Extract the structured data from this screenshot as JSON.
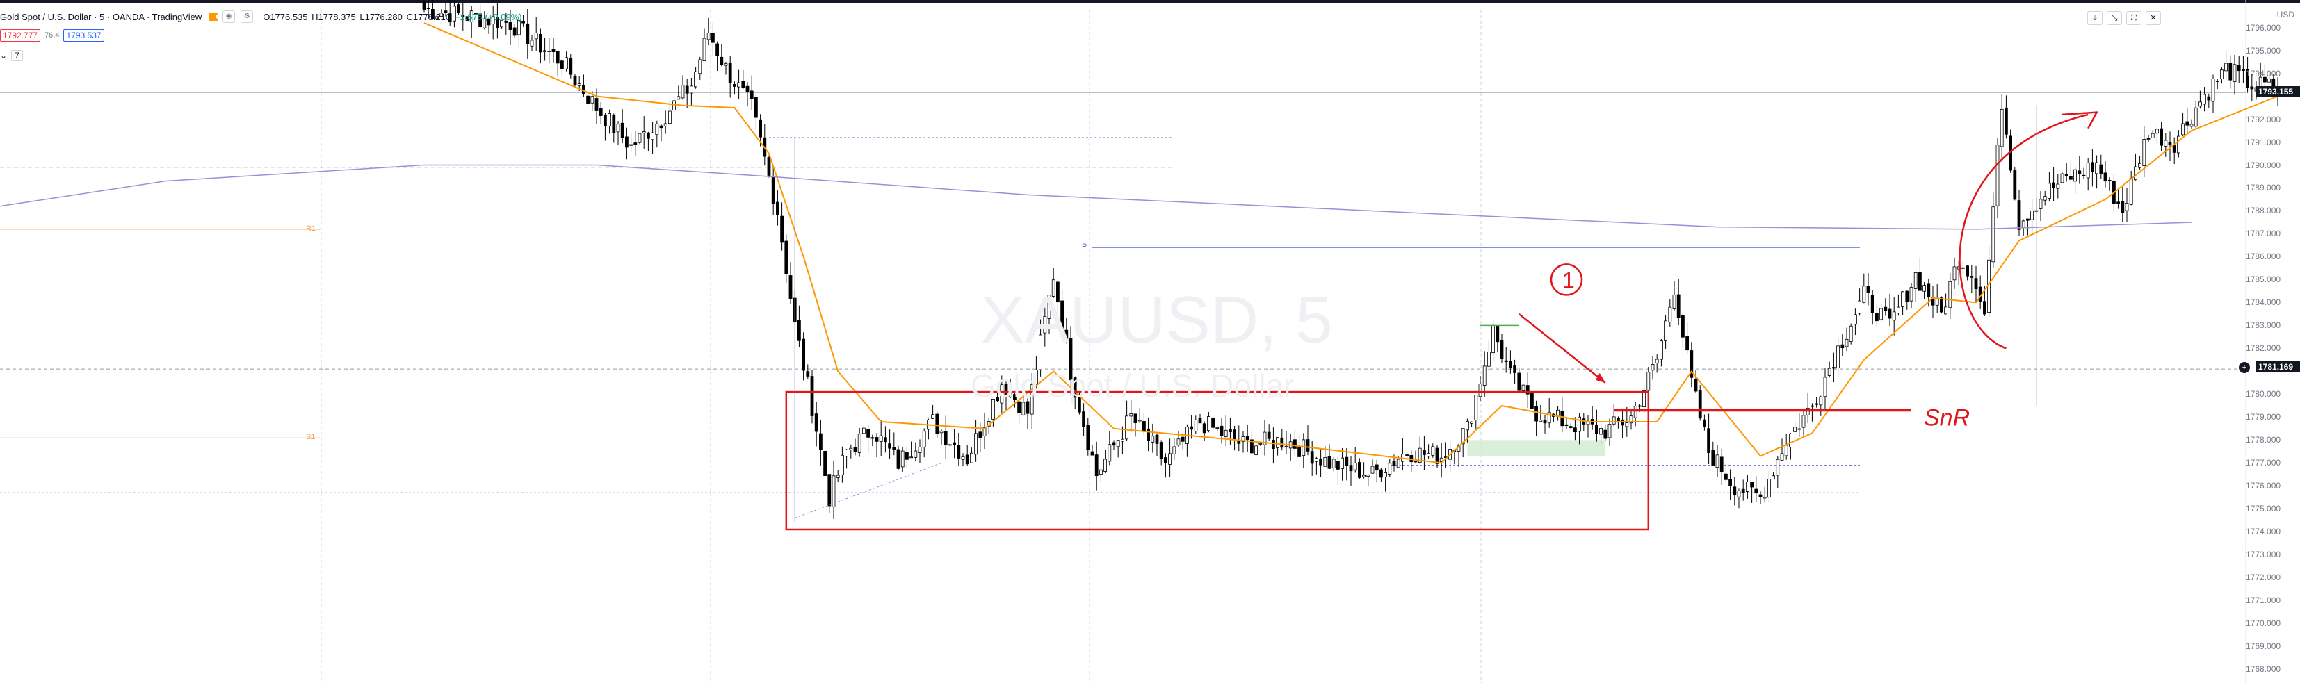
{
  "header": {
    "symbol_title": "Gold Spot / U.S. Dollar · 5 · OANDA · TradingView",
    "ohlc": {
      "open": "O1776.535",
      "high": "H1778.375",
      "low": "L1776.280",
      "close": "C1778.210",
      "change": "+1.675 (+0.09%)"
    }
  },
  "quote": {
    "sell": "1792.777",
    "spread": "76.4",
    "buy": "1793.537"
  },
  "indicators": {
    "count": "7"
  },
  "top_right_label": "USD",
  "watermark": {
    "symbol": "XAUUSD, 5",
    "description": "Gold Spot / U.S. Dollar"
  },
  "colors": {
    "up_candle": "#ffffff",
    "down_candle": "#000000",
    "candle_outline": "#000000",
    "ema_fast": "#ff9800",
    "ma_slow": "#9c8fd6",
    "annotation_red": "#e0161b",
    "pivot_blue": "#5b6bd6",
    "pivot_orange": "#f0a050",
    "fvg_green": "#d3ecd0",
    "current_price_bg": "#131722"
  },
  "annotations": {
    "circled_number": "1",
    "snr_label": "SnR",
    "pivot_p_label": "P",
    "pivot_s_label": "S1",
    "pivot_r_label": "R1"
  },
  "price_tags": {
    "current": "1793.155",
    "crosshair": "1781.169"
  },
  "chart_data": {
    "type": "candlestick",
    "title": "Gold Spot / U.S. Dollar · 5 · OANDA · TradingView",
    "xlabel": "",
    "ylabel": "",
    "ylim": [
      1767.4,
      1797.2
    ],
    "y_ticks": [
      1796.0,
      1795.0,
      1794.0,
      1792.0,
      1791.0,
      1790.0,
      1789.0,
      1788.0,
      1787.0,
      1786.0,
      1785.0,
      1784.0,
      1783.0,
      1782.0,
      1780.0,
      1779.0,
      1778.0,
      1777.0,
      1776.0,
      1775.0,
      1774.0,
      1773.0,
      1772.0,
      1771.0,
      1770.0,
      1769.0,
      1768.0
    ],
    "y_tick_labels": [
      "1796.000",
      "1795.000",
      "1794.000",
      "1792.000",
      "1791.000",
      "1790.000",
      "1789.000",
      "1788.000",
      "1787.000",
      "1786.000",
      "1785.000",
      "1784.000",
      "1783.000",
      "1782.000",
      "1780.000",
      "1779.000",
      "1778.000",
      "1777.000",
      "1776.000",
      "1775.000",
      "1774.000",
      "1773.000",
      "1772.000",
      "1771.000",
      "1770.000",
      "1769.000",
      "1768.000"
    ],
    "grid": "vertical dashed session separators",
    "legend": "none",
    "price_path": [
      [
        0,
        1796.8
      ],
      [
        20,
        1796.2
      ],
      [
        32,
        1794.5
      ],
      [
        40,
        1792.5
      ],
      [
        48,
        1790.8
      ],
      [
        55,
        1792.0
      ],
      [
        62,
        1793.5
      ],
      [
        66,
        1795.8
      ],
      [
        70,
        1794.2
      ],
      [
        76,
        1792.5
      ],
      [
        82,
        1788.0
      ],
      [
        86,
        1783.0
      ],
      [
        90,
        1779.5
      ],
      [
        94,
        1775.5
      ],
      [
        98,
        1777.5
      ],
      [
        104,
        1778.5
      ],
      [
        110,
        1777.0
      ],
      [
        118,
        1778.8
      ],
      [
        126,
        1777.2
      ],
      [
        134,
        1780.5
      ],
      [
        140,
        1779.2
      ],
      [
        146,
        1785.2
      ],
      [
        150,
        1781.0
      ],
      [
        156,
        1776.5
      ],
      [
        164,
        1779.0
      ],
      [
        172,
        1777.0
      ],
      [
        180,
        1778.8
      ],
      [
        190,
        1777.8
      ],
      [
        200,
        1778.0
      ],
      [
        210,
        1777.0
      ],
      [
        220,
        1776.5
      ],
      [
        228,
        1777.5
      ],
      [
        236,
        1777.3
      ],
      [
        242,
        1778.5
      ],
      [
        248,
        1782.8
      ],
      [
        252,
        1780.8
      ],
      [
        258,
        1779.2
      ],
      [
        266,
        1778.7
      ],
      [
        274,
        1778.4
      ],
      [
        280,
        1779.0
      ],
      [
        286,
        1781.5
      ],
      [
        290,
        1784.7
      ],
      [
        294,
        1780.5
      ],
      [
        298,
        1777.5
      ],
      [
        304,
        1776.0
      ],
      [
        310,
        1775.5
      ],
      [
        316,
        1778.0
      ],
      [
        322,
        1779.5
      ],
      [
        328,
        1782.0
      ],
      [
        334,
        1784.3
      ],
      [
        340,
        1783.0
      ],
      [
        346,
        1785.2
      ],
      [
        352,
        1783.5
      ],
      [
        356,
        1786.0
      ],
      [
        360,
        1785.0
      ],
      [
        362,
        1783.5
      ],
      [
        366,
        1792.8
      ],
      [
        370,
        1787.5
      ],
      [
        376,
        1788.8
      ],
      [
        382,
        1789.5
      ],
      [
        388,
        1790.0
      ],
      [
        394,
        1788.0
      ],
      [
        400,
        1791.5
      ],
      [
        406,
        1791.0
      ],
      [
        412,
        1792.8
      ],
      [
        418,
        1794.2
      ],
      [
        424,
        1793.5
      ],
      [
        430,
        1793.4
      ]
    ],
    "series": [
      {
        "name": "",
        "type": "ma",
        "values": [
          [
            0,
            1796.2
          ],
          [
            40,
            1793.0
          ],
          [
            60,
            1792.6
          ],
          [
            72,
            1792.5
          ],
          [
            80,
            1790.5
          ],
          [
            88,
            1786.0
          ],
          [
            96,
            1781.0
          ],
          [
            106,
            1778.8
          ],
          [
            130,
            1778.5
          ],
          [
            146,
            1781.0
          ],
          [
            160,
            1778.5
          ],
          [
            200,
            1777.8
          ],
          [
            236,
            1777.0
          ],
          [
            250,
            1779.5
          ],
          [
            270,
            1778.8
          ],
          [
            286,
            1778.8
          ],
          [
            294,
            1781.0
          ],
          [
            310,
            1777.3
          ],
          [
            322,
            1778.3
          ],
          [
            334,
            1781.5
          ],
          [
            350,
            1784.2
          ],
          [
            360,
            1784.0
          ],
          [
            370,
            1786.7
          ],
          [
            390,
            1788.5
          ],
          [
            410,
            1791.5
          ],
          [
            430,
            1793.0
          ]
        ]
      },
      {
        "name": "",
        "type": "ma",
        "values": [
          [
            -130,
            1787.3
          ],
          [
            -60,
            1789.3
          ],
          [
            0,
            1790.0
          ],
          [
            40,
            1790.0
          ],
          [
            80,
            1789.5
          ],
          [
            140,
            1788.7
          ],
          [
            220,
            1788.0
          ],
          [
            300,
            1787.3
          ],
          [
            360,
            1787.2
          ],
          [
            410,
            1787.5
          ]
        ]
      }
    ],
    "levels": [
      {
        "name": "P",
        "price": 1786.4
      },
      {
        "name": "R1",
        "price": 1787.2
      },
      {
        "name": "S1",
        "price": 1778.1
      },
      {
        "name": "",
        "price": 1789.9
      },
      {
        "name": "",
        "price": 1781.1
      },
      {
        "name": "",
        "price": 1776.9
      },
      {
        "name": "",
        "price": 1775.7
      }
    ],
    "annotations": [
      {
        "type": "rectangle",
        "color": "red",
        "from": [
          84,
          1780.1
        ],
        "to": [
          284,
          1774.1
        ]
      },
      {
        "type": "hline",
        "label": "SnR",
        "price": 1779.3
      },
      {
        "type": "text",
        "label": "1",
        "price": 1785.0
      },
      {
        "type": "arrow",
        "color": "red"
      },
      {
        "type": "curved-arrow",
        "color": "red"
      },
      {
        "type": "fvg-zone",
        "color": "green",
        "from": [
          242,
          1778.0
        ],
        "to": [
          274,
          1777.3
        ]
      }
    ]
  }
}
